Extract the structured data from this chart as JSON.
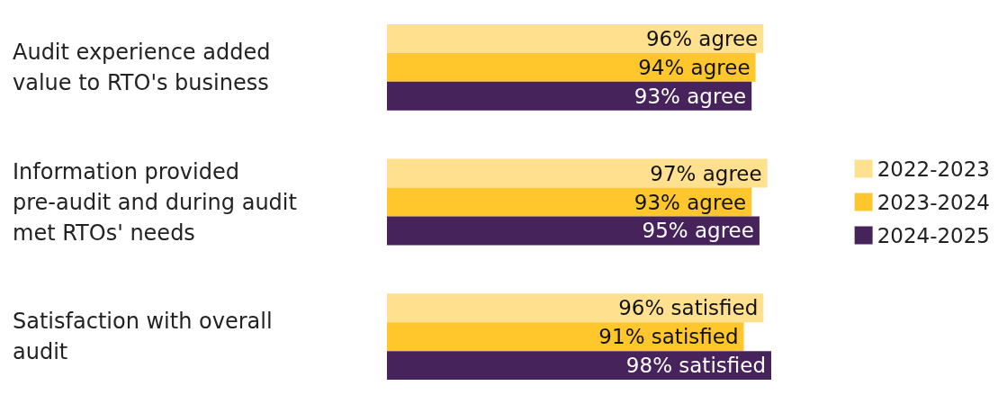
{
  "chart_data": {
    "type": "bar",
    "orientation": "horizontal",
    "categories": [
      "Audit experience added value to RTO's business",
      "Information provided pre-audit and during audit met RTOs' needs",
      "Satisfaction with overall audit"
    ],
    "series": [
      {
        "name": "2022-2023",
        "color": "#ffe08f",
        "values": [
          96,
          97,
          96
        ],
        "value_labels": [
          "96% agree",
          "97% agree",
          "96% satisfied"
        ]
      },
      {
        "name": "2023-2024",
        "color": "#ffc72c",
        "values": [
          94,
          93,
          91
        ],
        "value_labels": [
          "94% agree",
          "93% agree",
          "91% satisfied"
        ]
      },
      {
        "name": "2024-2025",
        "color": "#46235a",
        "values": [
          93,
          95,
          98
        ],
        "value_labels": [
          "93% agree",
          "95% agree",
          "98% satisfied"
        ]
      }
    ],
    "legend": "right",
    "grid": false
  }
}
